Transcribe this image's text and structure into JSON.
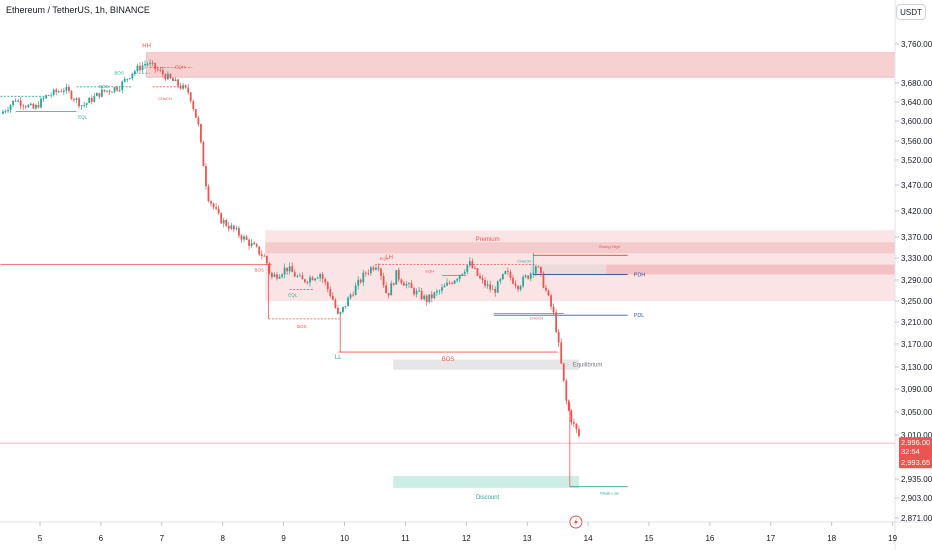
{
  "header": {
    "title": "Ethereum / TetherUS, 1h, BINANCE",
    "currency": "USDT"
  },
  "price_tags": {
    "last_price": "2,996.00",
    "countdown": "32:54",
    "second_price": "2,993.65"
  },
  "bottom_icon": "lightning-icon",
  "colors": {
    "up": "#26a69a",
    "down": "#ef5350",
    "supply_zone": "#f6c8c9",
    "premium_zone": "#fbe1e2",
    "discount_zone": "#cdeee6",
    "equilibrium_zone": "#e6e6e8",
    "prev_day_line": "#3a5ba0"
  },
  "chart_data": {
    "type": "candlestick",
    "title": "Ethereum / TetherUS, 1h, BINANCE",
    "ylim": [
      2850,
      3800
    ],
    "y_ticks": [
      3760,
      3680,
      3640,
      3600,
      3560,
      3520,
      3470,
      3420,
      3370,
      3330,
      3290,
      3250,
      3210,
      3170,
      3130,
      3090,
      3050,
      3010,
      2935,
      2903,
      2871
    ],
    "y_tick_labels": [
      "3,760.00",
      "3,680.00",
      "3,640.00",
      "3,600.00",
      "3,560.00",
      "3,520.00",
      "3,470.00",
      "3,420.00",
      "3,370.00",
      "3,330.00",
      "3,290.00",
      "3,250.00",
      "3,210.00",
      "3,170.00",
      "3,130.00",
      "3,090.00",
      "3,050.00",
      "3,010.00",
      "2,935.00",
      "2,903.00",
      "2,871.00"
    ],
    "x_ticks": [
      5,
      6,
      7,
      8,
      9,
      10,
      11,
      12,
      13,
      14,
      15,
      16,
      17,
      18,
      19
    ],
    "x_tick_labels": [
      "5",
      "6",
      "7",
      "8",
      "9",
      "10",
      "11",
      "12",
      "13",
      "14",
      "15",
      "16",
      "17",
      "18",
      "19"
    ],
    "xlim": [
      4.35,
      19.05
    ],
    "close_path": [
      [
        4.35,
        3615
      ],
      [
        4.6,
        3645
      ],
      [
        4.9,
        3625
      ],
      [
        5.1,
        3652
      ],
      [
        5.4,
        3668
      ],
      [
        5.7,
        3632
      ],
      [
        6.0,
        3660
      ],
      [
        6.3,
        3672
      ],
      [
        6.5,
        3700
      ],
      [
        6.75,
        3722
      ],
      [
        7.0,
        3700
      ],
      [
        7.2,
        3682
      ],
      [
        7.45,
        3660
      ],
      [
        7.6,
        3590
      ],
      [
        7.75,
        3450
      ],
      [
        7.95,
        3405
      ],
      [
        8.2,
        3382
      ],
      [
        8.5,
        3352
      ],
      [
        8.7,
        3330
      ],
      [
        8.8,
        3294
      ],
      [
        9.05,
        3312
      ],
      [
        9.3,
        3288
      ],
      [
        9.6,
        3302
      ],
      [
        9.8,
        3256
      ],
      [
        9.9,
        3218
      ],
      [
        10.1,
        3262
      ],
      [
        10.35,
        3304
      ],
      [
        10.55,
        3322
      ],
      [
        10.7,
        3260
      ],
      [
        10.85,
        3300
      ],
      [
        11.1,
        3272
      ],
      [
        11.35,
        3252
      ],
      [
        11.6,
        3272
      ],
      [
        11.85,
        3297
      ],
      [
        12.05,
        3320
      ],
      [
        12.25,
        3287
      ],
      [
        12.45,
        3268
      ],
      [
        12.65,
        3303
      ],
      [
        12.85,
        3280
      ],
      [
        13.05,
        3302
      ],
      [
        13.15,
        3318
      ],
      [
        13.3,
        3272
      ],
      [
        13.45,
        3218
      ],
      [
        13.55,
        3140
      ],
      [
        13.65,
        3062
      ],
      [
        13.75,
        3030
      ],
      [
        13.85,
        3008
      ]
    ],
    "last_price": 2996.0,
    "hh": {
      "label": "HH",
      "x": 6.75,
      "price": 3755
    },
    "ll": {
      "label": "LL",
      "x": 9.93,
      "price": 3158
    },
    "lh": {
      "label": "LH",
      "x": 10.75,
      "price": 3330
    },
    "strong_high": {
      "label": "Strong High",
      "price": 3335
    },
    "weak_low": {
      "label": "Weak Low",
      "price": 2922
    },
    "pdh": {
      "label": "PDH",
      "price": 3300
    },
    "pdl": {
      "label": "PDL",
      "price": 3223
    },
    "zones": [
      {
        "name": "supply-zone",
        "x0": 6.75,
        "x1": 19.05,
        "y0": 3692,
        "y1": 3742
      },
      {
        "name": "premium-zone",
        "x0": 8.7,
        "x1": 19.05,
        "y0": 3250,
        "y1": 3383
      },
      {
        "name": "premium-band-1",
        "x0": 8.7,
        "x1": 19.05,
        "y0": 3339,
        "y1": 3360
      },
      {
        "name": "premium-band-2",
        "x0": 13.05,
        "x1": 19.05,
        "y0": 3300,
        "y1": 3318
      },
      {
        "name": "equilibrium-zone",
        "x0": 10.8,
        "x1": 13.85,
        "y0": 3125,
        "y1": 3143
      },
      {
        "name": "discount-zone",
        "x0": 10.8,
        "x1": 13.85,
        "y0": 2920,
        "y1": 2940
      }
    ],
    "labels": {
      "premium": "Premium",
      "equilibrium": "Equilibrium",
      "discount": "Discount",
      "bos": "BOS",
      "choch": "CHoCH",
      "eqh": "EQH",
      "eql": "EQL"
    }
  }
}
